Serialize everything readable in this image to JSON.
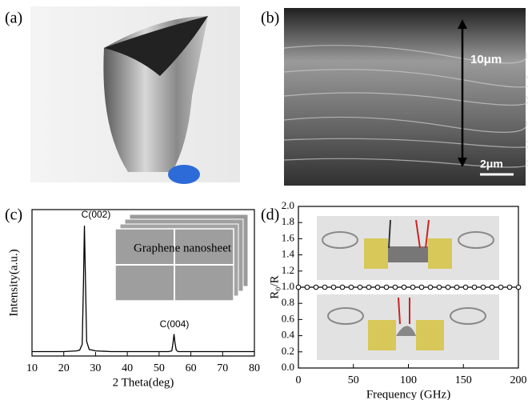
{
  "panel_labels": [
    "(a)",
    "(b)",
    "(c)",
    "(d)"
  ],
  "sem_annotations": [
    "10μm",
    "2μm"
  ],
  "chart_data": [
    {
      "type": "line",
      "xlabel": "2 Theta(deg)",
      "ylabel": "Intensity(a.u.)",
      "annotations": [
        "C(002)",
        "C(004)"
      ],
      "inset_label": "Graphene nanosheet",
      "x": [
        10,
        15,
        20,
        24,
        25,
        25.8,
        26.2,
        26.5,
        26.8,
        27.2,
        28,
        30,
        35,
        40,
        45,
        50,
        53,
        54,
        54.4,
        54.7,
        55,
        55.4,
        56,
        60,
        70,
        80
      ],
      "series": [
        {
          "color": "#000000",
          "values": [
            3,
            3,
            3,
            3.5,
            4,
            8,
            50,
            89,
            55,
            10,
            4.5,
            3.5,
            3,
            3,
            3,
            3,
            3,
            3.5,
            9,
            15,
            9,
            4,
            3,
            3,
            3,
            3
          ]
        }
      ],
      "xlim": [
        10,
        80
      ],
      "xticks": [
        10,
        20,
        30,
        40,
        50,
        60,
        70,
        80
      ],
      "ylim": [
        0,
        100
      ]
    },
    {
      "type": "line",
      "xlabel": "Frequency (GHz)",
      "ylabel": "R₀/R",
      "x": [
        0,
        8,
        16,
        24,
        32,
        40,
        48,
        56,
        64,
        72,
        80,
        88,
        96,
        104,
        112,
        120,
        128,
        136,
        144,
        152,
        160,
        168,
        176,
        184,
        192,
        200
      ],
      "series": [
        {
          "color": "#000000",
          "values": [
            1,
            1,
            1,
            1,
            1,
            1,
            1,
            1,
            1,
            1,
            1,
            1,
            1,
            1,
            1,
            1,
            1,
            1,
            1,
            1,
            1,
            1,
            1,
            1,
            1,
            1
          ]
        }
      ],
      "xlim": [
        0,
        200
      ],
      "xticks": [
        0,
        50,
        100,
        150,
        200
      ],
      "ylim": [
        0,
        2
      ],
      "yticks": [
        {
          "value": 0,
          "label": "0.0"
        },
        0.2,
        0.4,
        0.6,
        0.8,
        {
          "value": 1,
          "label": "1.0"
        },
        1.2,
        1.4,
        1.6,
        1.8,
        {
          "value": 2,
          "label": "2.0"
        }
      ]
    }
  ]
}
